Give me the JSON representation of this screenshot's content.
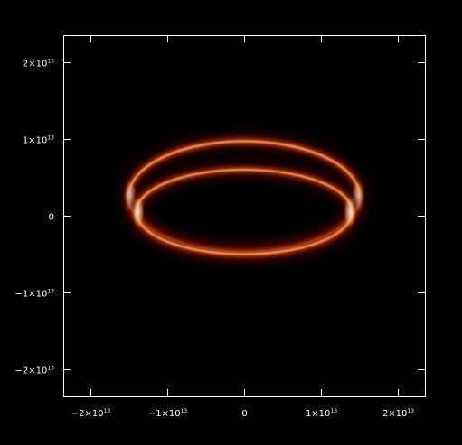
{
  "chart_data": {
    "type": "heatmap",
    "title": "",
    "xlabel": "",
    "ylabel": "",
    "xlim": [
      -23500000000000.0,
      23500000000000.0
    ],
    "ylim": [
      -23500000000000.0,
      23500000000000.0
    ],
    "grid": false,
    "colormap": "hot",
    "colors": {
      "background": "#000000",
      "low": "#3a0000",
      "mid": "#e04a10",
      "high": "#ffffff"
    },
    "x_ticks": [
      {
        "value": -20000000000000.0,
        "mantissa": "−2×10",
        "exponent": "13"
      },
      {
        "value": -10000000000000.0,
        "mantissa": "−1×10",
        "exponent": "13"
      },
      {
        "value": 0,
        "mantissa": "0",
        "exponent": ""
      },
      {
        "value": 10000000000000.0,
        "mantissa": "1×10",
        "exponent": "13"
      },
      {
        "value": 20000000000000.0,
        "mantissa": "2×10",
        "exponent": "13"
      }
    ],
    "y_ticks": [
      {
        "value": 20000000000000.0,
        "mantissa": "2×10",
        "exponent": "13"
      },
      {
        "value": 10000000000000.0,
        "mantissa": "1×10",
        "exponent": "13"
      },
      {
        "value": 0,
        "mantissa": "0",
        "exponent": ""
      },
      {
        "value": -10000000000000.0,
        "mantissa": "−1×10",
        "exponent": "13"
      },
      {
        "value": -20000000000000.0,
        "mantissa": "−2×10",
        "exponent": "13"
      }
    ],
    "rings": [
      {
        "name": "",
        "cx": 0,
        "cy": 2500000000000.0,
        "rx": 15000000000000.0,
        "ry": 7200000000000.0,
        "brightness": 0.75
      },
      {
        "name": "",
        "cx": 0,
        "cy": 500000000000.0,
        "rx": 14000000000000.0,
        "ry": 5500000000000.0,
        "brightness": 0.7
      }
    ]
  }
}
